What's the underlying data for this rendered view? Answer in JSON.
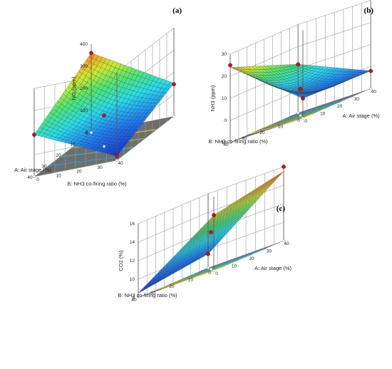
{
  "chart_data": [
    {
      "type": "surface3d",
      "panel_label": "(a)",
      "zlabel": "NO (ppm)",
      "xlabel": "A: Air stage (%)",
      "ylabel": "B: NH3 co-firing ratio (%)",
      "x_ticks": [
        "0",
        "10",
        "20",
        "30",
        "40"
      ],
      "y_ticks": [
        "0",
        "10",
        "20",
        "30",
        "40"
      ],
      "z_ticks": [
        "0",
        "100",
        "200",
        "300",
        "400"
      ],
      "xlim": [
        0,
        40
      ],
      "ylim": [
        0,
        40
      ],
      "zlim": [
        0,
        400
      ],
      "corner_values": {
        "x0_y0": 360,
        "x0_y40": 150,
        "x40_y0": 190,
        "x40_y40": 20
      },
      "design_points": [
        {
          "x": 0,
          "y": 0,
          "z": 360
        },
        {
          "x": 40,
          "y": 0,
          "z": 190
        },
        {
          "x": 20,
          "y": 20,
          "z": 140
        },
        {
          "x": 0,
          "y": 40,
          "z": 145
        },
        {
          "x": 40,
          "y": 40,
          "z": 20
        }
      ]
    },
    {
      "type": "surface3d",
      "panel_label": "(b)",
      "zlabel": "NH3 (ppm)",
      "xlabel": "A: Air stage (%)",
      "ylabel": "B: NH3 co-firing ratio (%)",
      "x_ticks": [
        "0",
        "10",
        "20",
        "30",
        "40"
      ],
      "y_ticks": [
        "0",
        "10",
        "20",
        "30",
        "40"
      ],
      "z_ticks": [
        "-10",
        "0",
        "10",
        "20",
        "30"
      ],
      "xlim": [
        0,
        40
      ],
      "ylim": [
        0,
        40
      ],
      "zlim": [
        -10,
        30
      ],
      "corner_values": {
        "x0_y0": -1,
        "x0_y40": 24,
        "x40_y0": -2,
        "x40_y40": 12
      },
      "design_points": [
        {
          "x": 0,
          "y": 40,
          "z": 25
        },
        {
          "x": 40,
          "y": 40,
          "z": 12
        },
        {
          "x": 20,
          "y": 20,
          "z": 2
        },
        {
          "x": 0,
          "y": 0,
          "z": -1
        },
        {
          "x": 40,
          "y": 0,
          "z": -2
        }
      ]
    },
    {
      "type": "surface3d",
      "panel_label": "(c)",
      "zlabel": "CO2 (%)",
      "xlabel": "A: Air stage (%)",
      "ylabel": "B: NH3 co-firing ratio (%)",
      "x_ticks": [
        "0",
        "10",
        "20",
        "30",
        "40"
      ],
      "y_ticks": [
        "0",
        "10",
        "20",
        "30",
        "40"
      ],
      "z_ticks": [
        "8",
        "10",
        "12",
        "14",
        "16"
      ],
      "xlim": [
        0,
        40
      ],
      "ylim": [
        0,
        40
      ],
      "zlim": [
        8,
        16
      ],
      "corner_values": {
        "x0_y0": 14,
        "x0_y40": 8.5,
        "x40_y0": 15.5,
        "x40_y40": 9.5
      },
      "design_points": [
        {
          "x": 0,
          "y": 0,
          "z": 14
        },
        {
          "x": 40,
          "y": 0,
          "z": 16
        },
        {
          "x": 20,
          "y": 20,
          "z": 12
        },
        {
          "x": 40,
          "y": 40,
          "z": 9.5
        }
      ]
    }
  ]
}
